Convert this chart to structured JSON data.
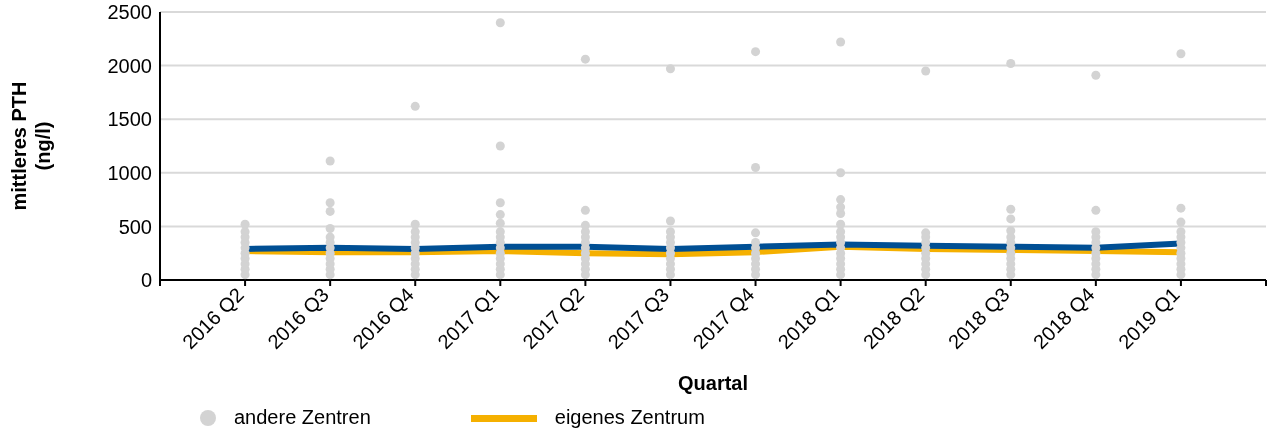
{
  "chart_data": {
    "type": "line",
    "xlabel": "Quartal",
    "ylabel": "mittleres PTH (ng/l)",
    "categories": [
      null,
      "2016 Q2",
      "2016 Q3",
      "2016 Q4",
      "2017 Q1",
      "2017 Q2",
      "2017 Q3",
      "2017 Q4",
      "2018 Q1",
      "2018 Q2",
      "2018 Q3",
      "2018 Q4",
      "2019 Q1",
      null
    ],
    "ylim": [
      0,
      2500
    ],
    "yticks": [
      0,
      500,
      1000,
      1500,
      2000,
      2500
    ],
    "grid": "y",
    "legend": "bottom",
    "marker": "none",
    "series": [
      {
        "name": "andere Zentren",
        "type": "scatter",
        "color": "#d3d3d3",
        "marker": "circle",
        "x": [
          "2016 Q2",
          "2016 Q2",
          "2016 Q2",
          "2016 Q2",
          "2016 Q2",
          "2016 Q2",
          "2016 Q2",
          "2016 Q2",
          "2016 Q2",
          "2016 Q2",
          "2016 Q3",
          "2016 Q3",
          "2016 Q3",
          "2016 Q3",
          "2016 Q3",
          "2016 Q3",
          "2016 Q3",
          "2016 Q3",
          "2016 Q3",
          "2016 Q3",
          "2016 Q3",
          "2016 Q3",
          "2016 Q4",
          "2016 Q4",
          "2016 Q4",
          "2016 Q4",
          "2016 Q4",
          "2016 Q4",
          "2016 Q4",
          "2016 Q4",
          "2016 Q4",
          "2016 Q4",
          "2016 Q4",
          "2017 Q1",
          "2017 Q1",
          "2017 Q1",
          "2017 Q1",
          "2017 Q1",
          "2017 Q1",
          "2017 Q1",
          "2017 Q1",
          "2017 Q1",
          "2017 Q1",
          "2017 Q1",
          "2017 Q1",
          "2017 Q1",
          "2017 Q1",
          "2017 Q2",
          "2017 Q2",
          "2017 Q2",
          "2017 Q2",
          "2017 Q2",
          "2017 Q2",
          "2017 Q2",
          "2017 Q2",
          "2017 Q2",
          "2017 Q2",
          "2017 Q2",
          "2017 Q2",
          "2017 Q3",
          "2017 Q3",
          "2017 Q3",
          "2017 Q3",
          "2017 Q3",
          "2017 Q3",
          "2017 Q3",
          "2017 Q3",
          "2017 Q3",
          "2017 Q3",
          "2017 Q3",
          "2017 Q4",
          "2017 Q4",
          "2017 Q4",
          "2017 Q4",
          "2017 Q4",
          "2017 Q4",
          "2017 Q4",
          "2017 Q4",
          "2017 Q4",
          "2017 Q4",
          "2018 Q1",
          "2018 Q1",
          "2018 Q1",
          "2018 Q1",
          "2018 Q1",
          "2018 Q1",
          "2018 Q1",
          "2018 Q1",
          "2018 Q1",
          "2018 Q1",
          "2018 Q1",
          "2018 Q1",
          "2018 Q1",
          "2018 Q1",
          "2018 Q1",
          "2018 Q2",
          "2018 Q2",
          "2018 Q2",
          "2018 Q2",
          "2018 Q2",
          "2018 Q2",
          "2018 Q2",
          "2018 Q2",
          "2018 Q2",
          "2018 Q2",
          "2018 Q3",
          "2018 Q3",
          "2018 Q3",
          "2018 Q3",
          "2018 Q3",
          "2018 Q3",
          "2018 Q3",
          "2018 Q3",
          "2018 Q3",
          "2018 Q3",
          "2018 Q3",
          "2018 Q3",
          "2018 Q4",
          "2018 Q4",
          "2018 Q4",
          "2018 Q4",
          "2018 Q4",
          "2018 Q4",
          "2018 Q4",
          "2018 Q4",
          "2018 Q4",
          "2018 Q4",
          "2018 Q4",
          "2019 Q1",
          "2019 Q1",
          "2019 Q1",
          "2019 Q1",
          "2019 Q1",
          "2019 Q1",
          "2019 Q1",
          "2019 Q1",
          "2019 Q1",
          "2019 Q1",
          "2019 Q1",
          "2019 Q1"
        ],
        "values": [
          50,
          100,
          150,
          200,
          250,
          300,
          350,
          400,
          450,
          520,
          50,
          100,
          150,
          200,
          250,
          300,
          350,
          400,
          480,
          640,
          720,
          1110,
          50,
          100,
          150,
          200,
          250,
          300,
          350,
          400,
          450,
          520,
          1620,
          50,
          100,
          150,
          200,
          250,
          300,
          350,
          400,
          450,
          530,
          610,
          720,
          1250,
          2400,
          50,
          100,
          150,
          200,
          250,
          300,
          350,
          400,
          450,
          510,
          650,
          2060,
          50,
          100,
          150,
          200,
          250,
          300,
          350,
          400,
          450,
          550,
          1970,
          50,
          100,
          150,
          200,
          250,
          300,
          350,
          440,
          1050,
          2130,
          50,
          100,
          150,
          200,
          250,
          300,
          350,
          400,
          450,
          520,
          620,
          680,
          750,
          1000,
          2220,
          50,
          100,
          150,
          200,
          250,
          300,
          350,
          400,
          440,
          1950,
          50,
          100,
          150,
          200,
          250,
          300,
          350,
          400,
          460,
          570,
          660,
          2020,
          50,
          100,
          150,
          200,
          250,
          300,
          350,
          400,
          450,
          650,
          1910,
          50,
          100,
          150,
          200,
          250,
          300,
          350,
          400,
          450,
          540,
          670,
          2110
        ]
      },
      {
        "name": "eigenes Zentrum",
        "color": "#f5b000",
        "values": [
          null,
          270,
          260,
          260,
          270,
          250,
          240,
          260,
          310,
          290,
          280,
          270,
          260,
          null
        ]
      },
      {
        "color": "#004f94",
        "values": [
          null,
          290,
          300,
          290,
          310,
          310,
          290,
          310,
          330,
          320,
          310,
          300,
          340,
          null
        ]
      }
    ]
  }
}
